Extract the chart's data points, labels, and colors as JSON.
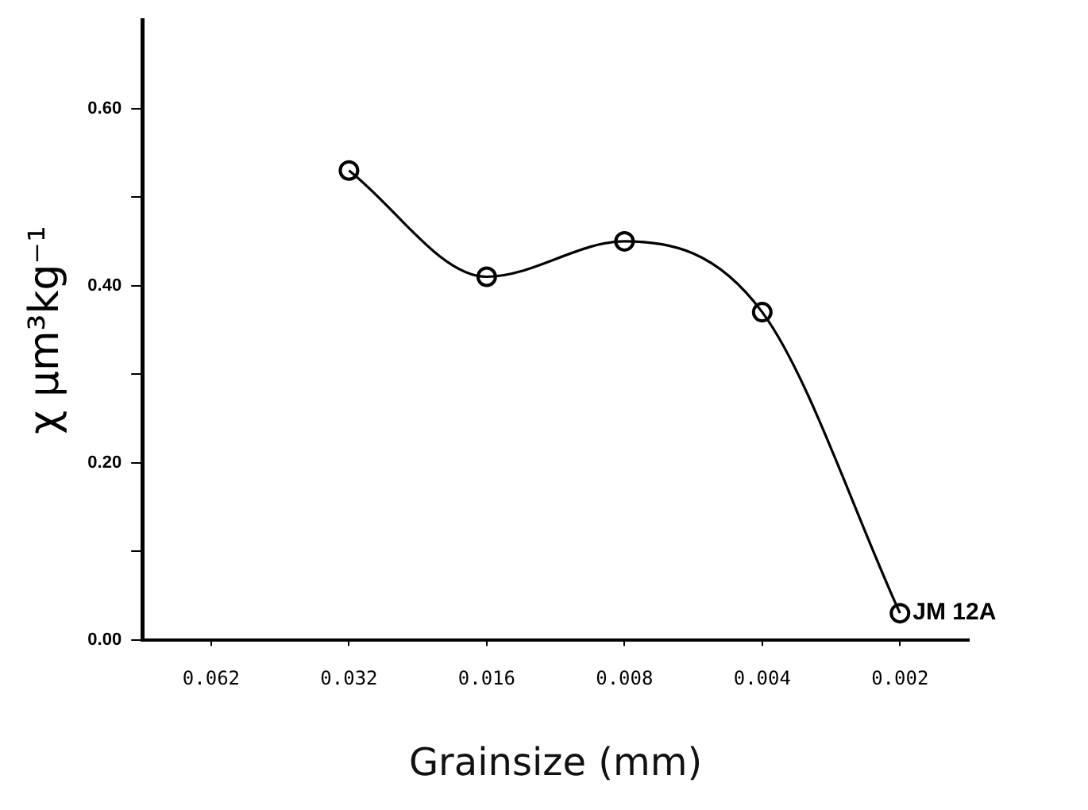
{
  "chart_data": {
    "type": "line",
    "xlabel": "Grainsize (mm)",
    "ylabel": "χ μm³kg⁻¹",
    "categories": [
      "0.062",
      "0.032",
      "0.016",
      "0.008",
      "0.004",
      "0.002"
    ],
    "series": [
      {
        "color": "#000000",
        "values": [
          null,
          0.53,
          0.41,
          0.45,
          0.37,
          0.03
        ]
      }
    ],
    "ylim": [
      0,
      0.7
    ],
    "yticks": [
      {
        "value": 0,
        "label": "0.00"
      },
      {
        "value": 0.1,
        "label": null
      },
      {
        "value": 0.2,
        "label": "0.20"
      },
      {
        "value": 0.3,
        "label": null
      },
      {
        "value": 0.4,
        "label": "0.40"
      },
      {
        "value": 0.5,
        "label": null
      },
      {
        "value": 0.6,
        "label": "0.60"
      }
    ],
    "annotations": [
      {
        "text": "JM 12A",
        "x": "0.002",
        "y": 0.03
      }
    ],
    "grid": false,
    "legend": false,
    "marker": "circle",
    "line_style": "solid"
  }
}
